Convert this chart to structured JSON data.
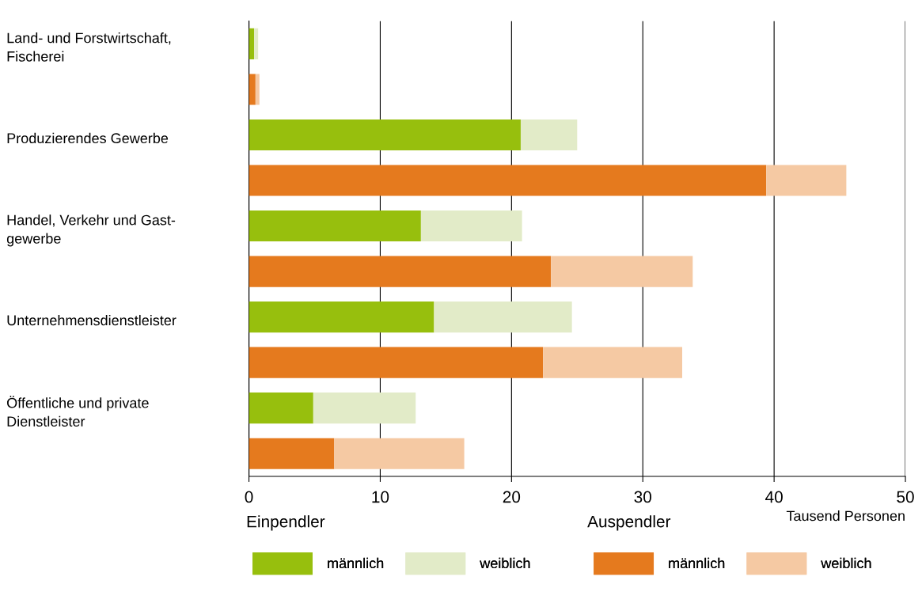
{
  "chart_data": {
    "type": "bar",
    "orientation": "horizontal",
    "stacked": true,
    "categories": [
      "Land- und Forstwirtschaft,\nFischerei",
      null,
      "Produzierendes Gewerbe",
      null,
      "Handel, Verkehr und Gast-\ngewerbe",
      null,
      "Unternehmensdienstleister",
      null,
      "Öffentliche und private\nDienstleister",
      null
    ],
    "series": [
      {
        "name": "männlich",
        "color": "#97bf0d",
        "values": [
          0.4,
          null,
          20.7,
          null,
          13.1,
          null,
          14.1,
          null,
          4.9,
          null
        ]
      },
      {
        "name": "weiblich",
        "color": "#e2ebc8",
        "values": [
          0.3,
          null,
          4.3,
          null,
          7.7,
          null,
          10.5,
          null,
          7.8,
          null
        ]
      },
      {
        "name": "männlich",
        "color": "#e57a1e",
        "values": [
          null,
          0.5,
          null,
          39.4,
          null,
          23.0,
          null,
          22.4,
          null,
          6.5
        ]
      },
      {
        "name": "weiblich",
        "color": "#f5c9a3",
        "values": [
          null,
          0.3,
          null,
          6.1,
          null,
          10.8,
          null,
          10.6,
          null,
          9.9
        ]
      }
    ],
    "xlim": [
      0,
      50
    ],
    "xticks": [
      0,
      10,
      20,
      30,
      40,
      50
    ],
    "xlabel": "Tausend Personen",
    "grid": "x",
    "legend": "bottom",
    "annotations": [
      "Einpendler",
      "Auspendler"
    ]
  }
}
